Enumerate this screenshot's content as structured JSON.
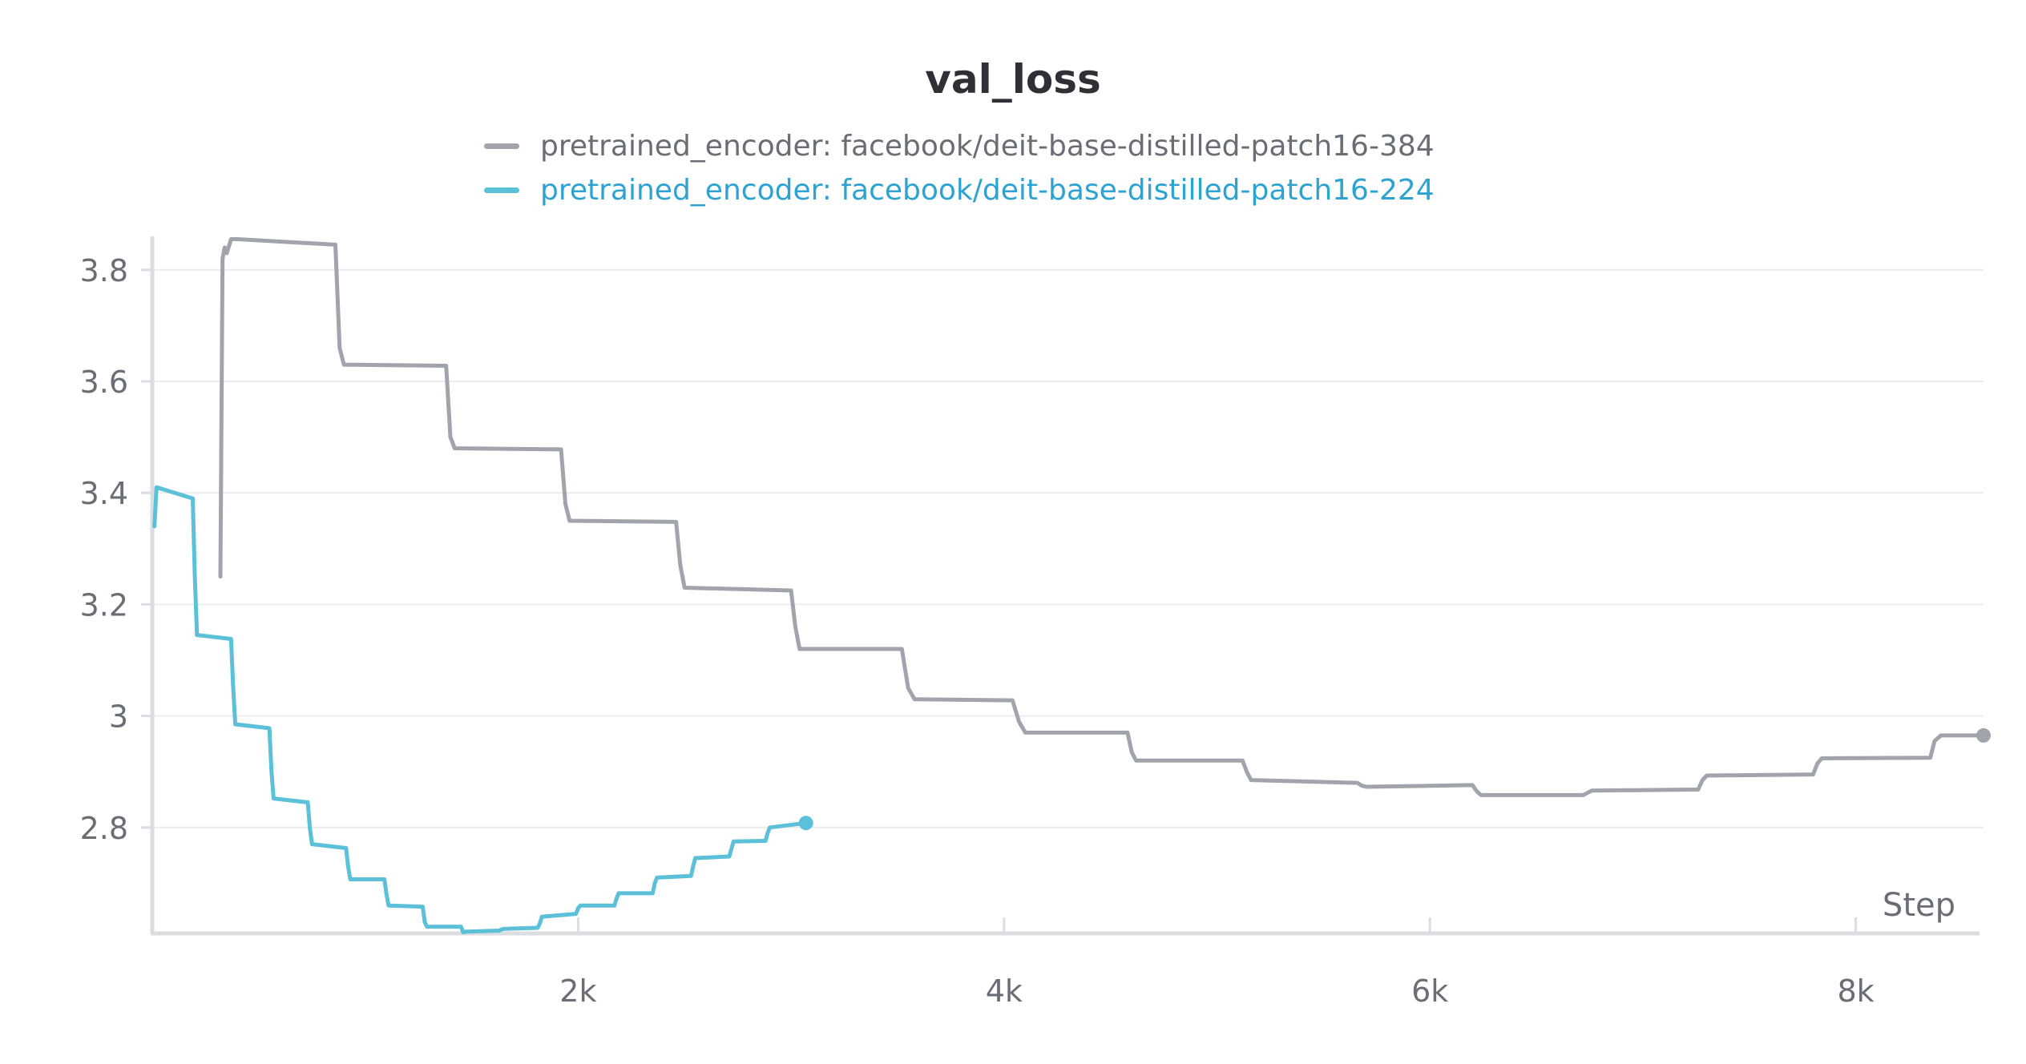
{
  "chart_data": {
    "type": "line",
    "title": "val_loss",
    "xlabel": "Step",
    "ylabel": "",
    "xlim": [
      0,
      8600
    ],
    "ylim": [
      2.61,
      3.86
    ],
    "x_ticks": [
      2000,
      4000,
      6000,
      8000
    ],
    "x_tick_labels": [
      "2k",
      "4k",
      "6k",
      "8k"
    ],
    "y_ticks": [
      2.8,
      3.0,
      3.2,
      3.4,
      3.6,
      3.8
    ],
    "y_tick_labels": [
      "2.8",
      "3",
      "3.2",
      "3.4",
      "3.6",
      "3.8"
    ],
    "grid": true,
    "legend_position": "top-center",
    "series": [
      {
        "name": "pretrained_encoder: facebook/deit-base-distilled-patch16-384",
        "color": "#a1a5ab",
        "end_marker": true,
        "x": [
          320,
          330,
          340,
          350,
          370,
          400,
          860,
          880,
          900,
          1380,
          1400,
          1420,
          1920,
          1940,
          1960,
          2460,
          2480,
          2500,
          3000,
          3020,
          3040,
          3520,
          3550,
          3580,
          4040,
          4070,
          4100,
          4580,
          4600,
          4620,
          5120,
          5140,
          5160,
          5660,
          5680,
          5700,
          6200,
          6220,
          6240,
          6720,
          6740,
          6760,
          7260,
          7280,
          7300,
          7800,
          7820,
          7840,
          8350,
          8370,
          8400,
          8600
        ],
        "y": [
          3.25,
          3.82,
          3.84,
          3.83,
          3.855,
          3.855,
          3.845,
          3.66,
          3.63,
          3.628,
          3.5,
          3.48,
          3.478,
          3.38,
          3.35,
          3.348,
          3.27,
          3.23,
          3.225,
          3.16,
          3.12,
          3.12,
          3.05,
          3.03,
          3.028,
          2.99,
          2.97,
          2.97,
          2.935,
          2.92,
          2.92,
          2.9,
          2.885,
          2.88,
          2.875,
          2.873,
          2.876,
          2.865,
          2.858,
          2.858,
          2.862,
          2.866,
          2.868,
          2.885,
          2.893,
          2.895,
          2.915,
          2.924,
          2.925,
          2.955,
          2.965,
          2.965
        ]
      },
      {
        "name": "pretrained_encoder: facebook/deit-base-distilled-patch16-224",
        "color": "#5bc0d8",
        "end_marker": true,
        "x": [
          10,
          20,
          190,
          200,
          210,
          370,
          380,
          390,
          550,
          560,
          570,
          730,
          740,
          750,
          910,
          920,
          930,
          1090,
          1100,
          1110,
          1270,
          1280,
          1290,
          1450,
          1460,
          1470,
          1630,
          1640,
          1650,
          1810,
          1820,
          1830,
          1990,
          2000,
          2010,
          2170,
          2180,
          2190,
          2350,
          2360,
          2370,
          2530,
          2540,
          2550,
          2710,
          2720,
          2730,
          2880,
          2890,
          2900,
          3070
        ],
        "y": [
          3.34,
          3.41,
          3.39,
          3.25,
          3.145,
          3.138,
          3.05,
          2.985,
          2.978,
          2.9,
          2.852,
          2.845,
          2.8,
          2.77,
          2.763,
          2.73,
          2.707,
          2.707,
          2.68,
          2.66,
          2.658,
          2.63,
          2.622,
          2.622,
          2.612,
          2.613,
          2.615,
          2.617,
          2.618,
          2.62,
          2.628,
          2.64,
          2.645,
          2.655,
          2.66,
          2.66,
          2.672,
          2.682,
          2.682,
          2.7,
          2.71,
          2.713,
          2.73,
          2.745,
          2.748,
          2.762,
          2.775,
          2.776,
          2.79,
          2.8,
          2.808
        ]
      }
    ]
  }
}
